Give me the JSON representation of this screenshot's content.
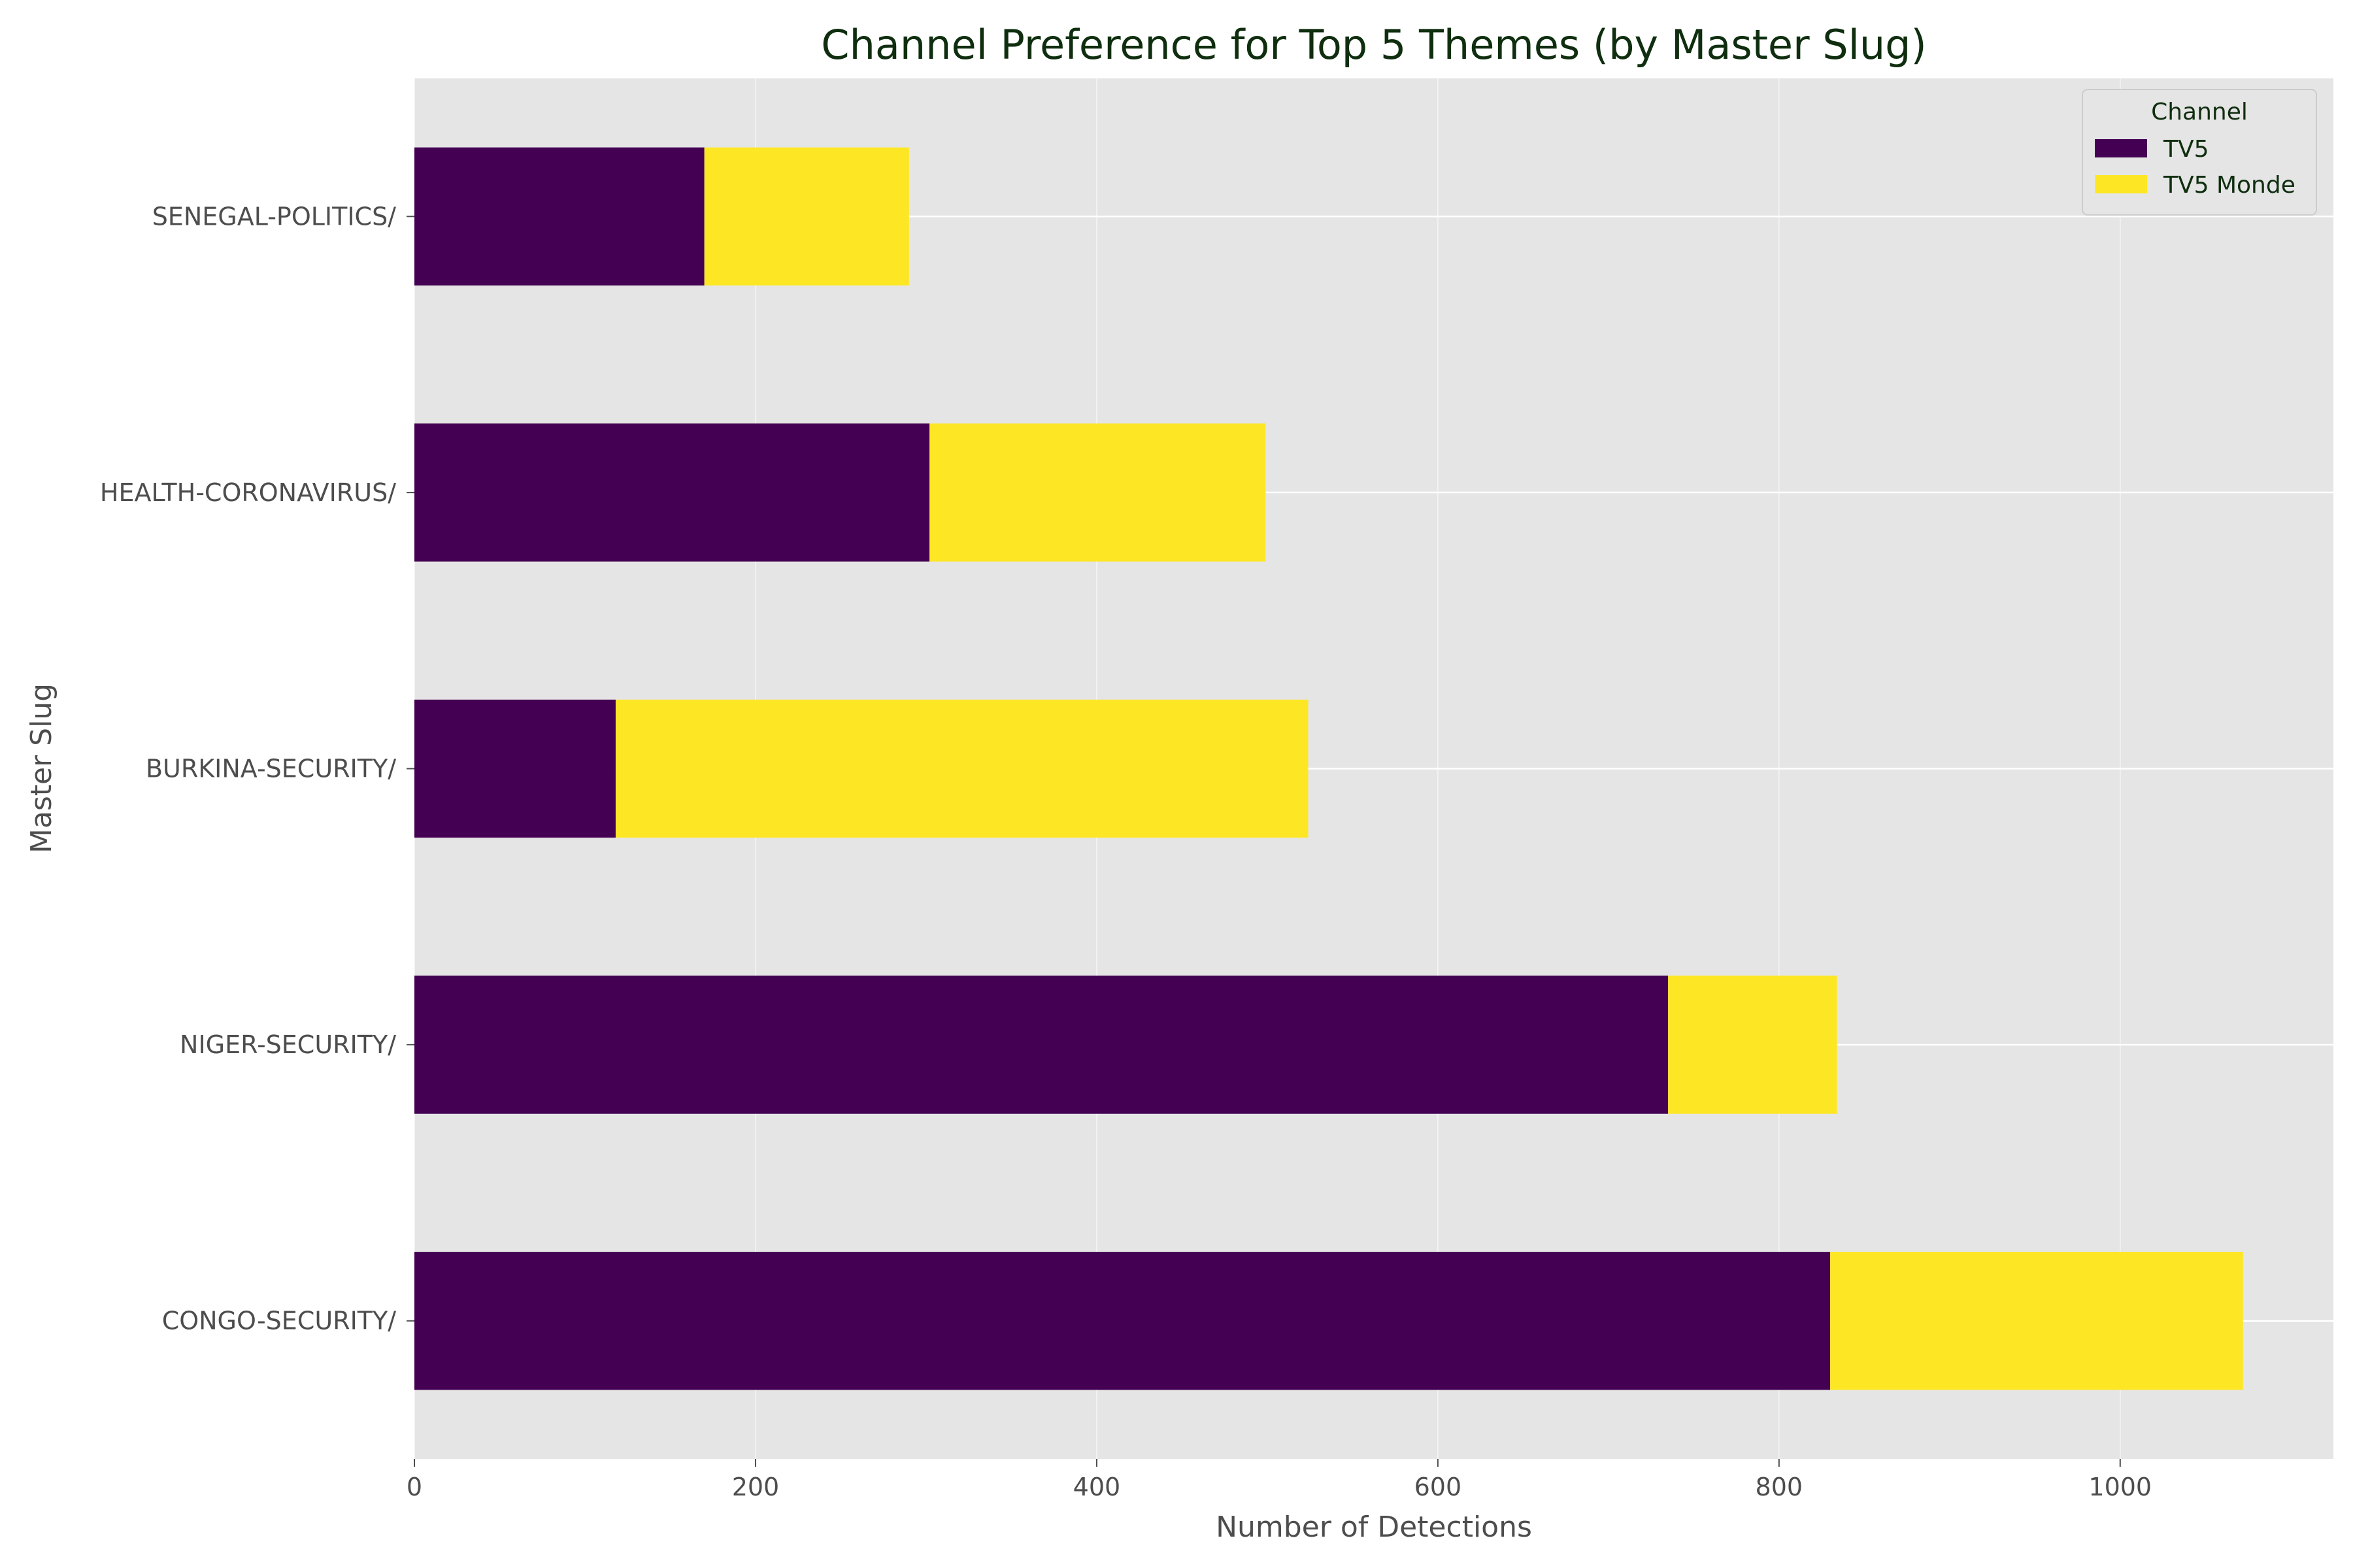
{
  "chart_data": {
    "type": "bar",
    "orientation": "horizontal",
    "stacked": true,
    "title": "Channel Preference for Top 5 Themes (by Master Slug)",
    "xlabel": "Number of Detections",
    "ylabel": "Master Slug",
    "categories": [
      "CONGO-SECURITY/",
      "NIGER-SECURITY/",
      "BURKINA-SECURITY/",
      "HEALTH-CORONAVIRUS/",
      "SENEGAL-POLITICS/"
    ],
    "series": [
      {
        "name": "TV5",
        "values": [
          830,
          735,
          118,
          302,
          170
        ],
        "color": "#440154"
      },
      {
        "name": "TV5 Monde",
        "values": [
          242,
          99,
          406,
          197,
          120
        ],
        "color": "#fde725"
      }
    ],
    "xlim": [
      0,
      1125
    ],
    "xticks": [
      0,
      200,
      400,
      600,
      800,
      1000
    ],
    "legend": {
      "title": "Channel",
      "position": "top-right"
    },
    "grid": true,
    "background": "#e5e5e5"
  }
}
